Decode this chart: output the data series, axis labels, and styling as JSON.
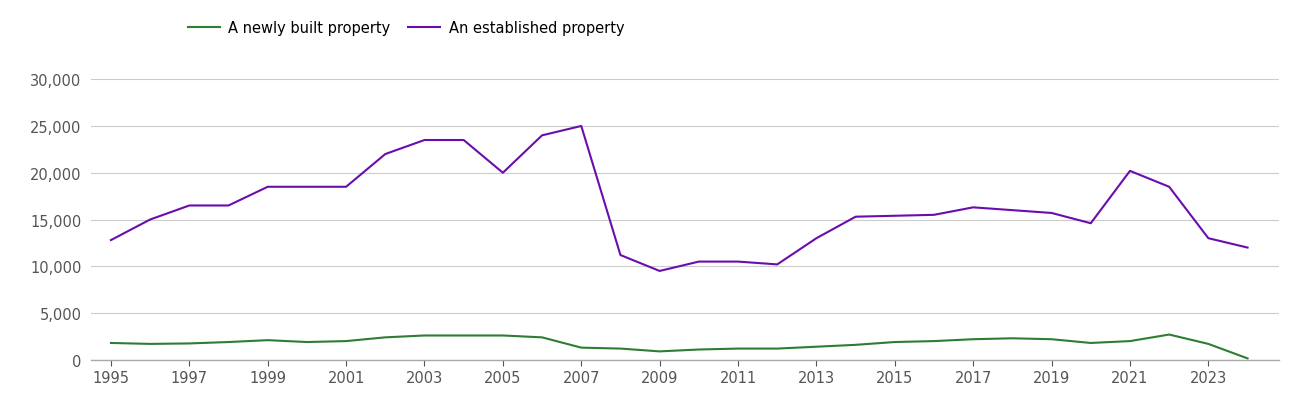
{
  "years": [
    1995,
    1996,
    1997,
    1998,
    1999,
    2000,
    2001,
    2002,
    2003,
    2004,
    2005,
    2006,
    2007,
    2008,
    2009,
    2010,
    2011,
    2012,
    2013,
    2014,
    2015,
    2016,
    2017,
    2018,
    2019,
    2020,
    2021,
    2022,
    2023,
    2024
  ],
  "new_homes": [
    1800,
    1700,
    1750,
    1900,
    2100,
    1900,
    2000,
    2400,
    2600,
    2600,
    2600,
    2400,
    1300,
    1200,
    900,
    1100,
    1200,
    1200,
    1400,
    1600,
    1900,
    2000,
    2200,
    2300,
    2200,
    1800,
    2000,
    2700,
    1700,
    150
  ],
  "established_homes": [
    12800,
    15000,
    16500,
    16500,
    18500,
    18500,
    18500,
    22000,
    23500,
    23500,
    20000,
    24000,
    25000,
    11200,
    9500,
    10500,
    10500,
    10200,
    13000,
    15300,
    15400,
    15500,
    16300,
    16000,
    15700,
    14600,
    20200,
    18500,
    13000,
    12000
  ],
  "new_homes_color": "#2e7d32",
  "established_homes_color": "#6a0dad",
  "legend_new": "A newly built property",
  "legend_established": "An established property",
  "ylim": [
    0,
    32000
  ],
  "yticks": [
    0,
    5000,
    10000,
    15000,
    20000,
    25000,
    30000
  ],
  "xtick_years": [
    1995,
    1997,
    1999,
    2001,
    2003,
    2005,
    2007,
    2009,
    2011,
    2013,
    2015,
    2017,
    2019,
    2021,
    2023
  ],
  "background_color": "#ffffff",
  "grid_color": "#cccccc",
  "line_width": 1.5,
  "tick_label_fontsize": 10.5,
  "legend_fontsize": 10.5
}
